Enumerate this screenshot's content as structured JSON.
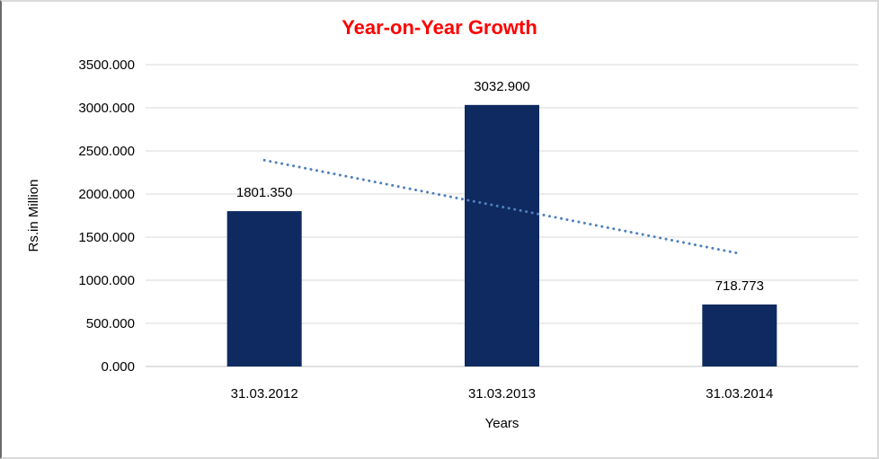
{
  "chart_data": {
    "type": "bar",
    "title": "Year-on-Year Growth",
    "xlabel": "Years",
    "ylabel": "Rs.in Million",
    "categories": [
      "31.03.2012",
      "31.03.2013",
      "31.03.2014"
    ],
    "values": [
      1801.35,
      3032.9,
      718.773
    ],
    "data_labels": [
      "1801.350",
      "3032.900",
      "718.773"
    ],
    "ylim": [
      0,
      3500
    ],
    "ytick_step": 500,
    "ytick_labels": [
      "0.000",
      "500.000",
      "1000.000",
      "1500.000",
      "2000.000",
      "2500.000",
      "3000.000",
      "3500.000"
    ],
    "grid": true,
    "legend": "none",
    "colors": {
      "bar": "#0f2a60",
      "title": "#ff0000",
      "gridline": "#d9d9d9",
      "axis_line": "#c0c0c0",
      "text": "#000000"
    },
    "trendline": {
      "type": "linear",
      "style": "dotted",
      "color": "#4f81bd",
      "points": [
        {
          "x_index": 0,
          "value": 2392
        },
        {
          "x_index": 2,
          "value": 1310
        }
      ]
    }
  }
}
